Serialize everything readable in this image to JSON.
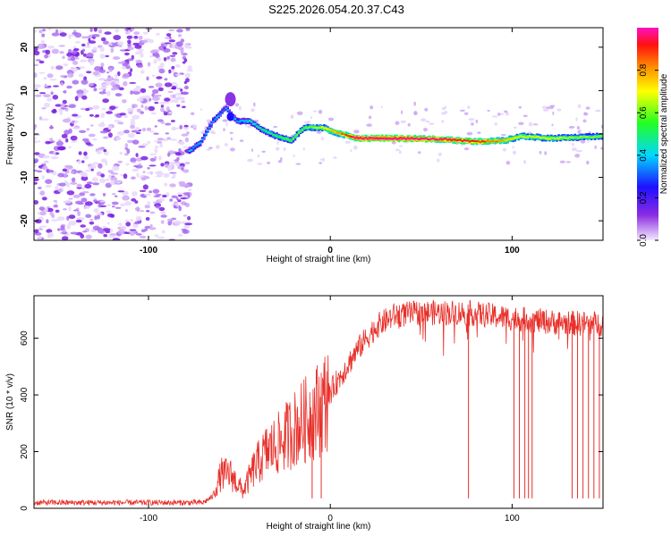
{
  "title": "S225.2026.054.20.37.C43",
  "colors": {
    "snr_line": "#e8302a",
    "frame": "#000000",
    "background": "#ffffff"
  },
  "chart_data": [
    {
      "type": "heatmap",
      "name": "spectrogram",
      "xlabel": "Height of straight line (km)",
      "ylabel": "Frequency (Hz)",
      "xlim": [
        -163,
        150
      ],
      "ylim": [
        -24.5,
        24.5
      ],
      "x_ticks": [
        -100,
        0,
        100
      ],
      "y_ticks": [
        -20,
        -10,
        0,
        10,
        20
      ],
      "colorbar": {
        "label": "Normalized spectral amplitude",
        "range": [
          0,
          1
        ],
        "ticks": [
          "0.0",
          "0.2",
          "0.4",
          "0.6",
          "0.8"
        ],
        "colormap": "rainbow (white-purple-blue-cyan-green-yellow-orange-red-magenta)"
      },
      "noise_region_x": [
        -163,
        -77
      ],
      "signal_track": [
        {
          "x": -78,
          "freq": -4,
          "amp": 0.3
        },
        {
          "x": -72,
          "freq": -2,
          "amp": 0.3
        },
        {
          "x": -65,
          "freq": 3,
          "amp": 0.3
        },
        {
          "x": -58,
          "freq": 6,
          "amp": 0.25
        },
        {
          "x": -52,
          "freq": 3,
          "amp": 0.3
        },
        {
          "x": -45,
          "freq": 3,
          "amp": 0.35
        },
        {
          "x": -38,
          "freq": 1,
          "amp": 0.4
        },
        {
          "x": -30,
          "freq": -0.5,
          "amp": 0.45
        },
        {
          "x": -22,
          "freq": -1.5,
          "amp": 0.5
        },
        {
          "x": -15,
          "freq": 1.5,
          "amp": 0.5
        },
        {
          "x": -5,
          "freq": 1.5,
          "amp": 0.6
        },
        {
          "x": 5,
          "freq": 0,
          "amp": 0.75
        },
        {
          "x": 15,
          "freq": -1,
          "amp": 0.95
        },
        {
          "x": 40,
          "freq": -1,
          "amp": 0.98
        },
        {
          "x": 60,
          "freq": -1.2,
          "amp": 0.9
        },
        {
          "x": 80,
          "freq": -1.8,
          "amp": 0.85
        },
        {
          "x": 95,
          "freq": -1.5,
          "amp": 0.7
        },
        {
          "x": 105,
          "freq": -0.5,
          "amp": 0.6
        },
        {
          "x": 120,
          "freq": -1,
          "amp": 0.6
        },
        {
          "x": 135,
          "freq": -0.8,
          "amp": 0.55
        },
        {
          "x": 150,
          "freq": -0.5,
          "amp": 0.5
        }
      ]
    },
    {
      "type": "line",
      "name": "snr",
      "xlabel": "Height of straight line (km)",
      "ylabel": "SNR (10 * v/v)",
      "xlim": [
        -163,
        150
      ],
      "ylim": [
        0,
        750
      ],
      "x_ticks": [
        -100,
        0,
        100
      ],
      "y_ticks": [
        0,
        200,
        400,
        600
      ],
      "envelope": [
        {
          "x": -163,
          "y": 20
        },
        {
          "x": -70,
          "y": 20
        },
        {
          "x": -65,
          "y": 40
        },
        {
          "x": -60,
          "y": 120
        },
        {
          "x": -55,
          "y": 120
        },
        {
          "x": -48,
          "y": 60
        },
        {
          "x": -42,
          "y": 140
        },
        {
          "x": -35,
          "y": 200
        },
        {
          "x": -28,
          "y": 230
        },
        {
          "x": -20,
          "y": 280
        },
        {
          "x": -12,
          "y": 320
        },
        {
          "x": -5,
          "y": 360
        },
        {
          "x": 5,
          "y": 460
        },
        {
          "x": 15,
          "y": 560
        },
        {
          "x": 25,
          "y": 640
        },
        {
          "x": 35,
          "y": 680
        },
        {
          "x": 50,
          "y": 690
        },
        {
          "x": 75,
          "y": 690
        },
        {
          "x": 100,
          "y": 670
        },
        {
          "x": 125,
          "y": 655
        },
        {
          "x": 150,
          "y": 650
        }
      ],
      "dropouts_x": [
        -10,
        -5,
        76,
        101,
        104,
        107,
        109,
        111,
        133,
        136,
        139,
        142,
        145,
        148
      ],
      "dropout_level": 35
    }
  ]
}
